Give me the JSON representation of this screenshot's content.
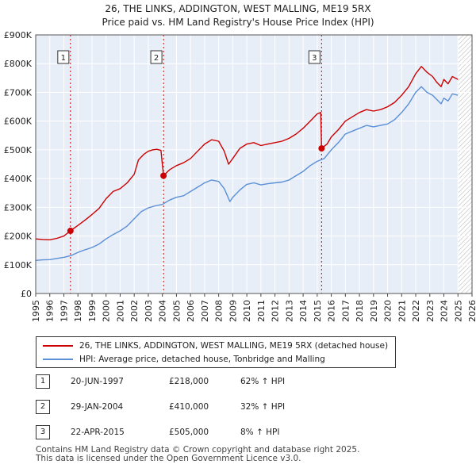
{
  "title_line1": "26, THE LINKS, ADDINGTON, WEST MALLING, ME19 5RX",
  "title_line2": "Price paid vs. HM Land Registry's House Price Index (HPI)",
  "chart_data": {
    "type": "line",
    "xlim": [
      1995,
      2026
    ],
    "ylim": [
      0,
      900000
    ],
    "y_ticks": [
      {
        "value": 0,
        "label": "£0"
      },
      {
        "value": 100000,
        "label": "£100K"
      },
      {
        "value": 200000,
        "label": "£200K"
      },
      {
        "value": 300000,
        "label": "£300K"
      },
      {
        "value": 400000,
        "label": "£400K"
      },
      {
        "value": 500000,
        "label": "£500K"
      },
      {
        "value": 600000,
        "label": "£600K"
      },
      {
        "value": 700000,
        "label": "£700K"
      },
      {
        "value": 800000,
        "label": "£800K"
      },
      {
        "value": 900000,
        "label": "£900K"
      }
    ],
    "x_ticks": [
      "1995",
      "1996",
      "1997",
      "1998",
      "1999",
      "2000",
      "2001",
      "2002",
      "2003",
      "2004",
      "2005",
      "2006",
      "2007",
      "2008",
      "2009",
      "2010",
      "2011",
      "2012",
      "2013",
      "2014",
      "2015",
      "2016",
      "2017",
      "2018",
      "2019",
      "2020",
      "2021",
      "2022",
      "2023",
      "2024",
      "2025",
      "2026"
    ],
    "shaded_from": 1995,
    "shaded_to": 2025.0,
    "future_hatch_from": 2025.0,
    "series": [
      {
        "name": "26, THE LINKS, ADDINGTON, WEST MALLING, ME19 5RX (detached house)",
        "color": "#cc0000",
        "points": [
          [
            1995.0,
            190000
          ],
          [
            1995.5,
            188000
          ],
          [
            1996.0,
            187000
          ],
          [
            1996.5,
            192000
          ],
          [
            1997.0,
            200000
          ],
          [
            1997.47,
            218000
          ],
          [
            1998.0,
            237000
          ],
          [
            1998.5,
            255000
          ],
          [
            1999.0,
            275000
          ],
          [
            1999.5,
            296000
          ],
          [
            2000.0,
            330000
          ],
          [
            2000.5,
            355000
          ],
          [
            2001.0,
            365000
          ],
          [
            2001.5,
            385000
          ],
          [
            2002.0,
            415000
          ],
          [
            2002.3,
            465000
          ],
          [
            2002.7,
            485000
          ],
          [
            2003.0,
            495000
          ],
          [
            2003.3,
            500000
          ],
          [
            2003.6,
            502000
          ],
          [
            2003.9,
            498000
          ],
          [
            2004.08,
            410000
          ],
          [
            2004.5,
            430000
          ],
          [
            2005.0,
            445000
          ],
          [
            2005.5,
            455000
          ],
          [
            2006.0,
            470000
          ],
          [
            2006.5,
            495000
          ],
          [
            2007.0,
            520000
          ],
          [
            2007.5,
            535000
          ],
          [
            2008.0,
            530000
          ],
          [
            2008.4,
            495000
          ],
          [
            2008.7,
            450000
          ],
          [
            2009.0,
            470000
          ],
          [
            2009.5,
            505000
          ],
          [
            2010.0,
            520000
          ],
          [
            2010.5,
            525000
          ],
          [
            2011.0,
            515000
          ],
          [
            2011.5,
            520000
          ],
          [
            2012.0,
            525000
          ],
          [
            2012.5,
            530000
          ],
          [
            2013.0,
            540000
          ],
          [
            2013.5,
            555000
          ],
          [
            2014.0,
            575000
          ],
          [
            2014.5,
            600000
          ],
          [
            2015.0,
            625000
          ],
          [
            2015.25,
            630000
          ],
          [
            2015.31,
            505000
          ],
          [
            2015.7,
            520000
          ],
          [
            2016.0,
            545000
          ],
          [
            2016.5,
            570000
          ],
          [
            2017.0,
            600000
          ],
          [
            2017.5,
            615000
          ],
          [
            2018.0,
            630000
          ],
          [
            2018.5,
            640000
          ],
          [
            2019.0,
            635000
          ],
          [
            2019.5,
            640000
          ],
          [
            2020.0,
            650000
          ],
          [
            2020.5,
            665000
          ],
          [
            2021.0,
            690000
          ],
          [
            2021.5,
            720000
          ],
          [
            2022.0,
            765000
          ],
          [
            2022.4,
            790000
          ],
          [
            2022.8,
            770000
          ],
          [
            2023.2,
            755000
          ],
          [
            2023.5,
            735000
          ],
          [
            2023.8,
            720000
          ],
          [
            2024.0,
            745000
          ],
          [
            2024.3,
            730000
          ],
          [
            2024.6,
            755000
          ],
          [
            2025.0,
            745000
          ]
        ]
      },
      {
        "name": "HPI: Average price, detached house, Tonbridge and Malling",
        "color": "#5b8fd6",
        "points": [
          [
            1995.0,
            115000
          ],
          [
            1995.5,
            117000
          ],
          [
            1996.0,
            118000
          ],
          [
            1996.5,
            122000
          ],
          [
            1997.0,
            126000
          ],
          [
            1997.5,
            132000
          ],
          [
            1998.0,
            143000
          ],
          [
            1998.5,
            152000
          ],
          [
            1999.0,
            160000
          ],
          [
            1999.5,
            172000
          ],
          [
            2000.0,
            190000
          ],
          [
            2000.5,
            205000
          ],
          [
            2001.0,
            218000
          ],
          [
            2001.5,
            235000
          ],
          [
            2002.0,
            260000
          ],
          [
            2002.5,
            285000
          ],
          [
            2003.0,
            298000
          ],
          [
            2003.5,
            305000
          ],
          [
            2004.0,
            310000
          ],
          [
            2004.5,
            325000
          ],
          [
            2005.0,
            335000
          ],
          [
            2005.5,
            340000
          ],
          [
            2006.0,
            355000
          ],
          [
            2006.5,
            370000
          ],
          [
            2007.0,
            385000
          ],
          [
            2007.5,
            395000
          ],
          [
            2008.0,
            390000
          ],
          [
            2008.4,
            365000
          ],
          [
            2008.8,
            320000
          ],
          [
            2009.0,
            335000
          ],
          [
            2009.5,
            360000
          ],
          [
            2010.0,
            380000
          ],
          [
            2010.5,
            385000
          ],
          [
            2011.0,
            378000
          ],
          [
            2011.5,
            382000
          ],
          [
            2012.0,
            385000
          ],
          [
            2012.5,
            388000
          ],
          [
            2013.0,
            395000
          ],
          [
            2013.5,
            410000
          ],
          [
            2014.0,
            425000
          ],
          [
            2014.5,
            445000
          ],
          [
            2015.0,
            460000
          ],
          [
            2015.5,
            470000
          ],
          [
            2016.0,
            500000
          ],
          [
            2016.5,
            525000
          ],
          [
            2017.0,
            555000
          ],
          [
            2017.5,
            565000
          ],
          [
            2018.0,
            575000
          ],
          [
            2018.5,
            585000
          ],
          [
            2019.0,
            580000
          ],
          [
            2019.5,
            585000
          ],
          [
            2020.0,
            590000
          ],
          [
            2020.5,
            605000
          ],
          [
            2021.0,
            630000
          ],
          [
            2021.5,
            660000
          ],
          [
            2022.0,
            700000
          ],
          [
            2022.4,
            720000
          ],
          [
            2022.8,
            700000
          ],
          [
            2023.2,
            690000
          ],
          [
            2023.5,
            675000
          ],
          [
            2023.8,
            660000
          ],
          [
            2024.0,
            680000
          ],
          [
            2024.3,
            670000
          ],
          [
            2024.6,
            695000
          ],
          [
            2025.0,
            690000
          ]
        ]
      }
    ],
    "sales": [
      {
        "marker": "1",
        "year": 1997.47,
        "price": 218000
      },
      {
        "marker": "2",
        "year": 2004.08,
        "price": 410000
      },
      {
        "marker": "3",
        "year": 2015.31,
        "price": 505000
      }
    ]
  },
  "legend": {
    "red_label": "26, THE LINKS, ADDINGTON, WEST MALLING, ME19 5RX (detached house)",
    "blue_label": "HPI: Average price, detached house, Tonbridge and Malling"
  },
  "sales_table": [
    {
      "num": "1",
      "date": "20-JUN-1997",
      "price": "£218,000",
      "hpi": "62% ↑ HPI"
    },
    {
      "num": "2",
      "date": "29-JAN-2004",
      "price": "£410,000",
      "hpi": "32% ↑ HPI"
    },
    {
      "num": "3",
      "date": "22-APR-2015",
      "price": "£505,000",
      "hpi": "8% ↑ HPI"
    }
  ],
  "footer_line1": "Contains HM Land Registry data © Crown copyright and database right 2025.",
  "footer_line2": "This data is licensed under the Open Government Licence v3.0.",
  "colors": {
    "red": "#cc0000",
    "blue": "#5b8fd6",
    "shade": "#e8eef8",
    "grid": "#ffffff"
  }
}
